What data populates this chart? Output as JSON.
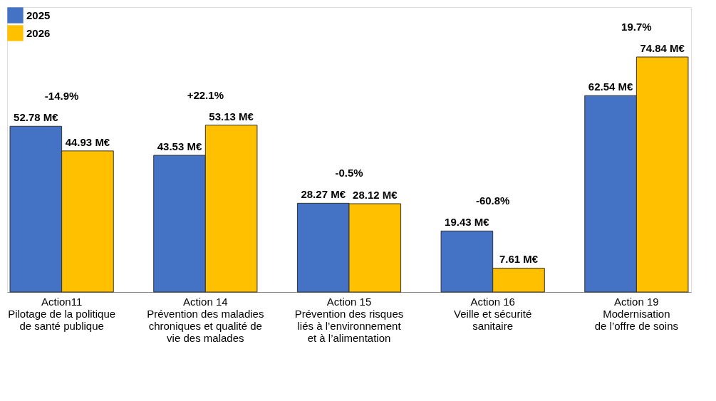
{
  "chart_data": {
    "type": "bar",
    "categories": [
      "Action11\nPilotage de la politique\nde santé publique",
      "Action 14\nPrévention des maladies\nchroniques et qualité de\nvie des malades",
      "Action 15\nPrévention des risques\nliés à l’environnement\net à l’alimentation",
      "Action 16\nVeille et sécurité\nsanitaire",
      "Action 19\nModernisation\nde l’offre de soins"
    ],
    "series": [
      {
        "name": "2025",
        "color": "#4472c4",
        "values": [
          52.78,
          43.53,
          28.27,
          19.43,
          62.54
        ],
        "value_labels": [
          "52.78 M€",
          "43.53 M€",
          "28.27 M€",
          "19.43 M€",
          "62.54 M€"
        ]
      },
      {
        "name": "2026",
        "color": "#ffc000",
        "values": [
          44.93,
          53.13,
          28.12,
          7.61,
          74.84
        ],
        "value_labels": [
          "44.93 M€",
          "53.13 M€",
          "28.12 M€",
          "7.61 M€",
          "74.84 M€"
        ]
      }
    ],
    "annotations": [
      "-14.9%",
      "+22.1%",
      "-0.5%",
      "-60.8%",
      "19.7%"
    ],
    "legend": "top left",
    "grid": false
  }
}
